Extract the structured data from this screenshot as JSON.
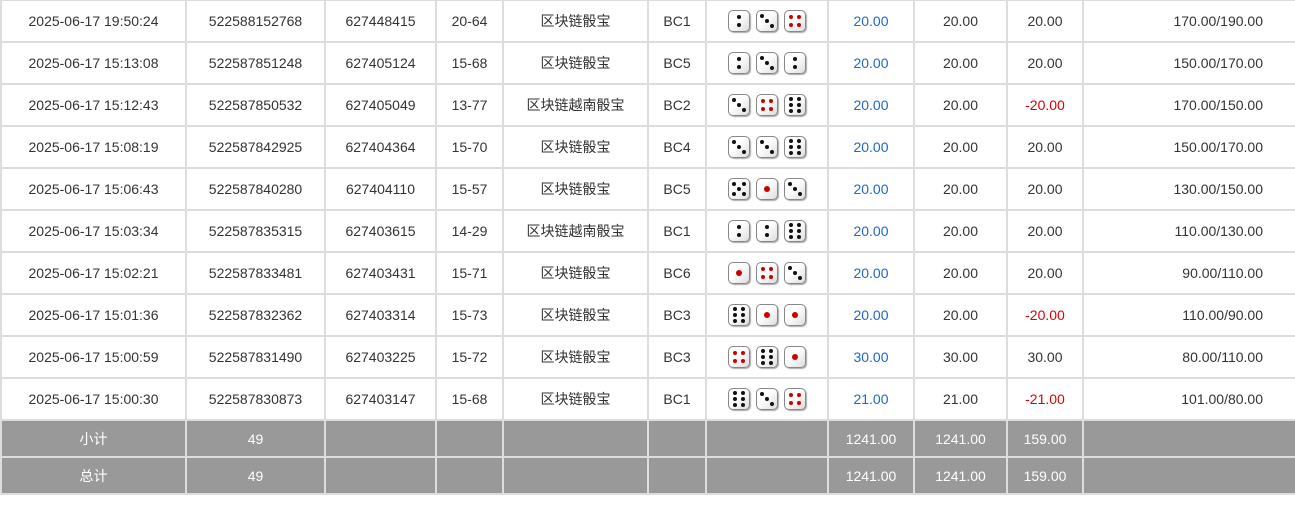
{
  "rows": [
    {
      "time": "2025-06-17 19:50:24",
      "order": "522588152768",
      "issue": "627448415",
      "table": "20-64",
      "game": "区块链骰宝",
      "bet": "BC1",
      "dice": [
        2,
        3,
        4
      ],
      "amount": "20.00",
      "valid": "20.00",
      "win": "20.00",
      "balance": "170.00/190.00"
    },
    {
      "time": "2025-06-17 15:13:08",
      "order": "522587851248",
      "issue": "627405124",
      "table": "15-68",
      "game": "区块链骰宝",
      "bet": "BC5",
      "dice": [
        2,
        3,
        2
      ],
      "amount": "20.00",
      "valid": "20.00",
      "win": "20.00",
      "balance": "150.00/170.00"
    },
    {
      "time": "2025-06-17 15:12:43",
      "order": "522587850532",
      "issue": "627405049",
      "table": "13-77",
      "game": "区块链越南骰宝",
      "bet": "BC2",
      "dice": [
        3,
        4,
        6
      ],
      "amount": "20.00",
      "valid": "20.00",
      "win": "-20.00",
      "balance": "170.00/150.00"
    },
    {
      "time": "2025-06-17 15:08:19",
      "order": "522587842925",
      "issue": "627404364",
      "table": "15-70",
      "game": "区块链骰宝",
      "bet": "BC4",
      "dice": [
        3,
        3,
        6
      ],
      "amount": "20.00",
      "valid": "20.00",
      "win": "20.00",
      "balance": "150.00/170.00"
    },
    {
      "time": "2025-06-17 15:06:43",
      "order": "522587840280",
      "issue": "627404110",
      "table": "15-57",
      "game": "区块链骰宝",
      "bet": "BC5",
      "dice": [
        5,
        1,
        3
      ],
      "amount": "20.00",
      "valid": "20.00",
      "win": "20.00",
      "balance": "130.00/150.00"
    },
    {
      "time": "2025-06-17 15:03:34",
      "order": "522587835315",
      "issue": "627403615",
      "table": "14-29",
      "game": "区块链越南骰宝",
      "bet": "BC1",
      "dice": [
        2,
        2,
        6
      ],
      "amount": "20.00",
      "valid": "20.00",
      "win": "20.00",
      "balance": "110.00/130.00"
    },
    {
      "time": "2025-06-17 15:02:21",
      "order": "522587833481",
      "issue": "627403431",
      "table": "15-71",
      "game": "区块链骰宝",
      "bet": "BC6",
      "dice": [
        1,
        4,
        3
      ],
      "amount": "20.00",
      "valid": "20.00",
      "win": "20.00",
      "balance": "90.00/110.00"
    },
    {
      "time": "2025-06-17 15:01:36",
      "order": "522587832362",
      "issue": "627403314",
      "table": "15-73",
      "game": "区块链骰宝",
      "bet": "BC3",
      "dice": [
        6,
        1,
        1
      ],
      "amount": "20.00",
      "valid": "20.00",
      "win": "-20.00",
      "balance": "110.00/90.00"
    },
    {
      "time": "2025-06-17 15:00:59",
      "order": "522587831490",
      "issue": "627403225",
      "table": "15-72",
      "game": "区块链骰宝",
      "bet": "BC3",
      "dice": [
        4,
        6,
        1
      ],
      "amount": "30.00",
      "valid": "30.00",
      "win": "30.00",
      "balance": "80.00/110.00"
    },
    {
      "time": "2025-06-17 15:00:30",
      "order": "522587830873",
      "issue": "627403147",
      "table": "15-68",
      "game": "区块链骰宝",
      "bet": "BC1",
      "dice": [
        6,
        3,
        4
      ],
      "amount": "21.00",
      "valid": "21.00",
      "win": "-21.00",
      "balance": "101.00/80.00"
    }
  ],
  "subtotal": {
    "label": "小计",
    "count": "49",
    "amount": "1241.00",
    "valid": "1241.00",
    "win": "159.00"
  },
  "total": {
    "label": "总计",
    "count": "49",
    "amount": "1241.00",
    "valid": "1241.00",
    "win": "159.00"
  },
  "colors": {
    "amount": "#2266cc",
    "loss": "#e00000",
    "footer_bg": "#999999",
    "pip_red": "#cc0000"
  }
}
